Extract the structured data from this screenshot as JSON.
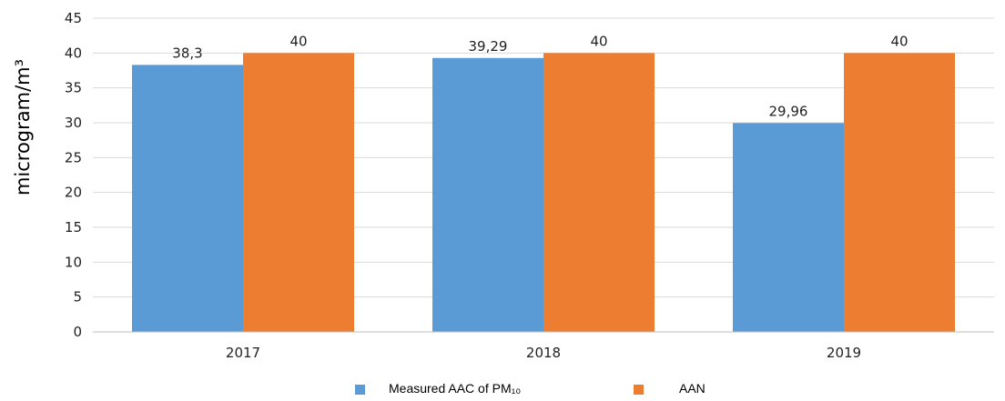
{
  "chart_data": {
    "type": "bar",
    "categories": [
      "2017",
      "2018",
      "2019"
    ],
    "series": [
      {
        "name": "Measured AAC of PM₁₀",
        "values": [
          38.3,
          39.29,
          29.96
        ],
        "labels": [
          "38,3",
          "39,29",
          "29,96"
        ],
        "color": "#5B9BD5"
      },
      {
        "name": "AAN",
        "values": [
          40,
          40,
          40
        ],
        "labels": [
          "40",
          "40",
          "40"
        ],
        "color": "#ED7D31"
      }
    ],
    "ylabel": "microgram/m³",
    "xlabel": "",
    "ylim": [
      0,
      45
    ],
    "yticks": [
      0,
      5,
      10,
      15,
      20,
      25,
      30,
      35,
      40,
      45
    ],
    "ytick_labels": [
      "0",
      "5",
      "10",
      "15",
      "20",
      "25",
      "30",
      "35",
      "40",
      "45"
    ],
    "grid": true,
    "legend_position": "bottom"
  }
}
